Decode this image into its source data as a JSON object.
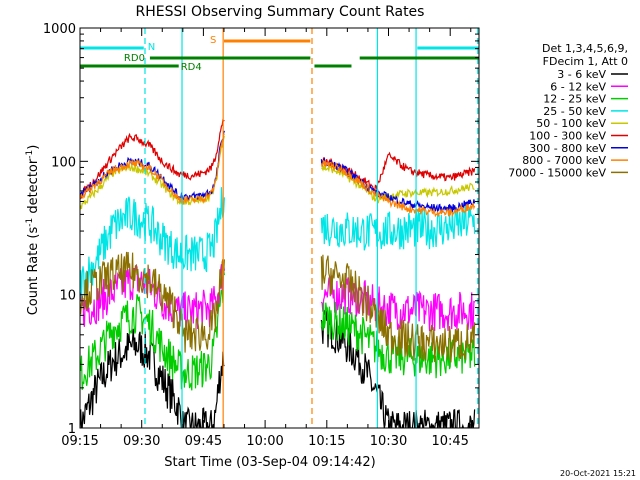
{
  "chart_data": {
    "type": "line",
    "title": "RHESSI Observing Summary Count Rates",
    "xlabel": "Start Time (03-Sep-04 09:14:42)",
    "ylabel_main": "Count Rate (s",
    "ylabel_sup1": "-1",
    "ylabel_mid": " detector",
    "ylabel_sup2": "-1",
    "ylabel_end": ")",
    "y_scale": "log",
    "ylim": [
      1,
      1000
    ],
    "xlim_minutes": [
      0,
      97
    ],
    "x_ticks": [
      {
        "label": "09:15",
        "t": 0
      },
      {
        "label": "09:30",
        "t": 15
      },
      {
        "label": "09:45",
        "t": 30
      },
      {
        "label": "10:00",
        "t": 45
      },
      {
        "label": "10:15",
        "t": 60
      },
      {
        "label": "10:30",
        "t": 75
      },
      {
        "label": "10:45",
        "t": 90
      }
    ],
    "y_ticks": [
      {
        "label": "1",
        "v": 1
      },
      {
        "label": "10",
        "v": 10
      },
      {
        "label": "100",
        "v": 100
      },
      {
        "label": "1000",
        "v": 1000
      }
    ],
    "legend": {
      "header1": "Det 1,3,4,5,6,9,",
      "header2": "FDecim 1, Att 0",
      "entries": [
        {
          "label": "3 - 6 keV",
          "color": "#000000"
        },
        {
          "label": "6 - 12 keV",
          "color": "#ff00ff"
        },
        {
          "label": "12 - 25 keV",
          "color": "#00cc00"
        },
        {
          "label": "25 - 50 keV",
          "color": "#00e5e5"
        },
        {
          "label": "50 - 100 keV",
          "color": "#c8c800"
        },
        {
          "label": "100 - 300 keV",
          "color": "#e00000"
        },
        {
          "label": "300 - 800 keV",
          "color": "#0000e0"
        },
        {
          "label": "800 - 7000 keV",
          "color": "#ff8000"
        },
        {
          "label": "7000 - 15000 keV",
          "color": "#8b7000"
        }
      ]
    },
    "flags": [
      {
        "label": "N",
        "color": "#00e5e5",
        "segments": [
          [
            0,
            15.5
          ],
          [
            82,
            97
          ]
        ],
        "level": "top"
      },
      {
        "label": "S",
        "color": "#ff8000",
        "segments": [
          [
            35,
            56
          ]
        ],
        "level": "upper"
      },
      {
        "label": "RD0",
        "color": "#008000",
        "segments": [
          [
            17,
            56
          ],
          [
            68,
            97
          ]
        ],
        "level": "middle"
      },
      {
        "label": "RD4",
        "color": "#008000",
        "segments": [
          [
            0,
            24
          ],
          [
            57,
            66
          ]
        ],
        "level": "lower"
      }
    ],
    "vlines": [
      {
        "t": 15.8,
        "color": "#00e5e5",
        "style": "dashed"
      },
      {
        "t": 24.8,
        "color": "#00e5e5",
        "style": "solid"
      },
      {
        "t": 34.8,
        "color": "#ff8000",
        "style": "solid"
      },
      {
        "t": 56.4,
        "color": "#ff8000",
        "style": "dashed"
      },
      {
        "t": 72.3,
        "color": "#00e5e5",
        "style": "solid"
      },
      {
        "t": 81.7,
        "color": "#00e5e5",
        "style": "solid"
      },
      {
        "t": 96.7,
        "color": "#00e5e5",
        "style": "dashed"
      }
    ],
    "data_gap_minutes": [
      35.2,
      58.5
    ],
    "series": [
      {
        "name": "3 - 6 keV",
        "color": "#000000",
        "t": [
          0,
          4,
          8,
          12,
          14,
          17,
          20,
          24,
          25,
          27,
          30,
          32,
          33,
          34,
          35,
          58.5,
          61,
          64,
          68,
          72,
          75,
          80,
          85,
          90,
          96
        ],
        "v": [
          1.0,
          2.0,
          3.2,
          4.0,
          4.2,
          3.5,
          2.3,
          1.4,
          1.0,
          1.0,
          1.0,
          1.0,
          1.3,
          2.5,
          3.5,
          5.8,
          5.5,
          4.5,
          3.3,
          1.8,
          1.0,
          1.0,
          1.0,
          1.0,
          1.0
        ]
      },
      {
        "name": "6 - 12 keV",
        "color": "#ff00ff",
        "t": [
          0,
          4,
          8,
          12,
          14,
          17,
          20,
          24,
          25,
          27,
          30,
          32,
          33,
          34,
          35,
          58.5,
          61,
          64,
          68,
          72,
          75,
          80,
          85,
          90,
          96
        ],
        "v": [
          7.5,
          8.5,
          10.5,
          12.5,
          13,
          11.5,
          9.0,
          7.5,
          7.5,
          7.5,
          7.8,
          8.0,
          9.0,
          12,
          16,
          10,
          10,
          10,
          9.5,
          8.3,
          7.8,
          7.6,
          7.5,
          7.5,
          7.7
        ]
      },
      {
        "name": "12 - 25 keV",
        "color": "#00cc00",
        "t": [
          0,
          4,
          8,
          12,
          14,
          17,
          20,
          24,
          25,
          27,
          30,
          32,
          33,
          34,
          35,
          58.5,
          61,
          64,
          68,
          72,
          75,
          80,
          85,
          90,
          96
        ],
        "v": [
          2.5,
          3.5,
          5.5,
          7.0,
          7.3,
          6.0,
          4.0,
          2.8,
          2.6,
          2.6,
          2.8,
          3.2,
          4.5,
          8.0,
          12,
          7.0,
          6.5,
          6.0,
          5.2,
          4.0,
          3.5,
          3.4,
          3.3,
          3.4,
          3.5
        ]
      },
      {
        "name": "25 - 50 keV",
        "color": "#00e5e5",
        "t": [
          0,
          4,
          8,
          12,
          14,
          17,
          20,
          24,
          25,
          27,
          30,
          32,
          33,
          34,
          35,
          58.5,
          61,
          64,
          68,
          72,
          75,
          80,
          85,
          90,
          96
        ],
        "v": [
          12,
          18,
          32,
          40,
          38,
          34,
          26,
          20,
          20,
          20,
          20,
          22,
          27,
          40,
          58,
          33,
          32,
          31,
          30,
          29,
          30,
          31,
          31,
          32,
          36
        ]
      },
      {
        "name": "50 - 100 keV",
        "color": "#c8c800",
        "t": [
          0,
          4,
          8,
          12,
          14,
          17,
          20,
          24,
          25,
          27,
          30,
          32,
          33,
          34,
          35,
          58.5,
          61,
          64,
          68,
          72,
          75,
          80,
          85,
          90,
          96
        ],
        "v": [
          45,
          60,
          82,
          90,
          88,
          80,
          66,
          50,
          50,
          50,
          52,
          56,
          68,
          110,
          160,
          90,
          88,
          80,
          66,
          52,
          55,
          58,
          58,
          60,
          65
        ]
      },
      {
        "name": "100 - 300 keV",
        "color": "#e00000",
        "t": [
          0,
          4,
          8,
          12,
          14,
          17,
          20,
          24,
          25,
          27,
          30,
          32,
          33,
          34,
          35,
          58.5,
          61,
          64,
          68,
          72,
          75,
          80,
          85,
          90,
          96
        ],
        "v": [
          55,
          75,
          110,
          150,
          148,
          130,
          100,
          80,
          80,
          78,
          82,
          90,
          110,
          160,
          210,
          100,
          98,
          90,
          75,
          62,
          110,
          85,
          78,
          75,
          85
        ]
      },
      {
        "name": "300 - 800 keV",
        "color": "#0000e0",
        "t": [
          0,
          4,
          8,
          12,
          14,
          17,
          20,
          24,
          25,
          27,
          30,
          32,
          33,
          34,
          35,
          58.5,
          61,
          64,
          68,
          72,
          75,
          80,
          85,
          90,
          96
        ],
        "v": [
          56,
          70,
          88,
          100,
          99,
          92,
          76,
          55,
          55,
          54,
          56,
          60,
          72,
          120,
          170,
          98,
          96,
          88,
          72,
          58,
          54,
          48,
          45,
          44,
          50
        ]
      },
      {
        "name": "800 - 7000 keV",
        "color": "#ff8000",
        "t": [
          0,
          4,
          8,
          12,
          14,
          17,
          20,
          24,
          25,
          27,
          30,
          32,
          33,
          34,
          35,
          58.5,
          61,
          64,
          68,
          72,
          75,
          80,
          85,
          90,
          96
        ],
        "v": [
          54,
          68,
          86,
          96,
          95,
          88,
          72,
          52,
          52,
          51,
          53,
          58,
          70,
          115,
          165,
          96,
          94,
          86,
          70,
          56,
          50,
          44,
          42,
          41,
          47
        ]
      },
      {
        "name": "7000 - 15000 keV",
        "color": "#8b7000",
        "t": [
          0,
          4,
          8,
          12,
          14,
          17,
          20,
          24,
          25,
          27,
          30,
          32,
          33,
          34,
          35,
          58.5,
          61,
          64,
          68,
          72,
          75,
          80,
          85,
          90,
          96
        ],
        "v": [
          10,
          12,
          14,
          15,
          14.5,
          13,
          10,
          7.0,
          5.0,
          5.0,
          5.2,
          5.5,
          7.0,
          11,
          16,
          15,
          14,
          13,
          10,
          7.0,
          5.0,
          4.5,
          4.3,
          4.2,
          4.5
        ]
      }
    ]
  },
  "footer": {
    "date_stamp": "20-Oct-2021 15:21"
  }
}
